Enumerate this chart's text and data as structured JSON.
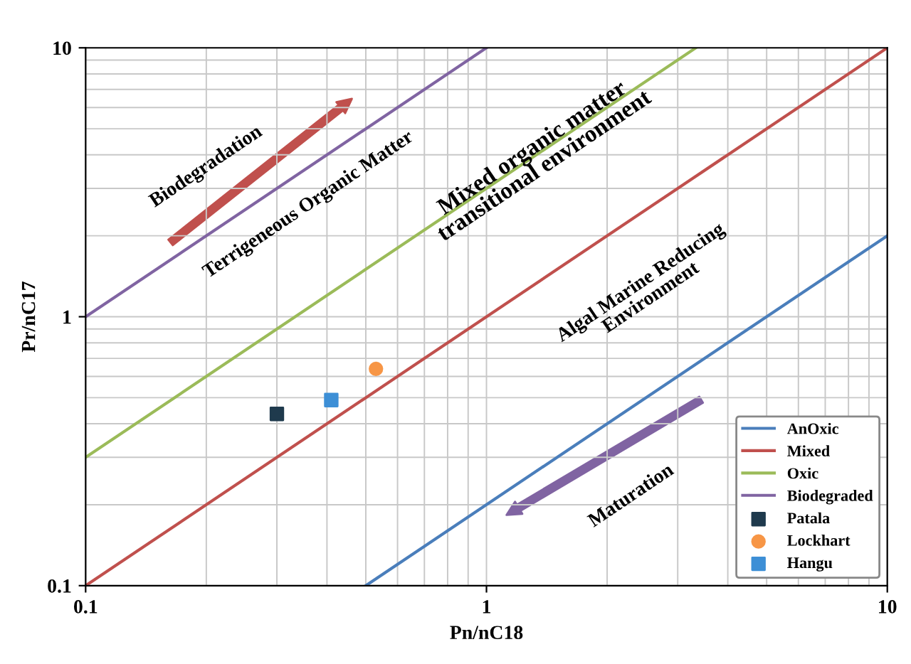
{
  "chart_data": {
    "type": "line",
    "xlabel": "Pn/nC18",
    "ylabel": "Pr/nC17",
    "log": "xy",
    "xlim": [
      0.1,
      10
    ],
    "ylim": [
      0.1,
      10
    ],
    "xticks": [
      0.1,
      1,
      10
    ],
    "yticks": [
      0.1,
      1,
      10
    ],
    "grid": true,
    "legend": "bottom right",
    "series": [
      {
        "name": "AnOxic",
        "color": "#4a7ebb",
        "x": [
          0.5,
          10
        ],
        "values": [
          0.1,
          2
        ]
      },
      {
        "name": "Mixed",
        "color": "#c0504d",
        "x": [
          0.1,
          10
        ],
        "values": [
          0.1,
          10
        ]
      },
      {
        "name": "Oxic",
        "color": "#9bbb59",
        "x": [
          0.1,
          3.33
        ],
        "values": [
          0.3,
          10
        ]
      },
      {
        "name": "Biodegraded",
        "color": "#8064a2",
        "x": [
          0.1,
          1
        ],
        "values": [
          1,
          10
        ]
      },
      {
        "name": "Patala",
        "type": "scatter",
        "marker": "square",
        "color": "#1f3a4d",
        "x": [
          0.3
        ],
        "values": [
          0.435
        ]
      },
      {
        "name": "Lockhart",
        "type": "scatter",
        "marker": "circle",
        "color": "#f79646",
        "x": [
          0.53
        ],
        "values": [
          0.64
        ]
      },
      {
        "name": "Hangu",
        "type": "scatter",
        "marker": "square",
        "color": "#3d8fd6",
        "x": [
          0.41
        ],
        "values": [
          0.49
        ]
      }
    ],
    "annotations": [
      "Biodegradation",
      "Terrigeneous Organic Matter",
      "Mixed organic matter\ntransitional environment",
      "Algal Marine Reducing\nEnvironment",
      "Maturation"
    ]
  }
}
